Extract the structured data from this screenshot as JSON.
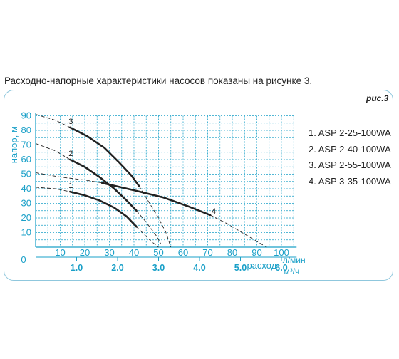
{
  "caption": "Расходно-напорные характеристики насосов показаны на рисунке 3.",
  "figure_label": "рис.3",
  "colors": {
    "axis_text": "#1aa0c8",
    "grid": "#1aa0c8",
    "frame": "#8fc7dd",
    "curve": "#222222"
  },
  "chart_data": {
    "type": "line",
    "ylabel": "напор, м",
    "xlabel_primary": "расход л/мин",
    "xlabel_secondary": "расход м³/ч",
    "xlabel_word": "расход",
    "xlabel_unit_lmin": "л/мин",
    "xlabel_unit_m3h": "м³/ч",
    "origin_label": "0",
    "y_ticks": [
      "10",
      "20",
      "30",
      "40",
      "50",
      "60",
      "70",
      "80",
      "90"
    ],
    "x_ticks_lmin": [
      "10",
      "20",
      "30",
      "40",
      "50",
      "60",
      "70",
      "80",
      "90",
      "100"
    ],
    "x_ticks_m3h": [
      "1.0",
      "2.0",
      "3.0",
      "4.0",
      "5.0",
      "6.0"
    ],
    "xlim": [
      0,
      105
    ],
    "ylim": [
      0,
      90
    ],
    "grid": true,
    "legend": [
      "1. ASP 2-25-100WA",
      "2. ASP 2-40-100WA",
      "3. ASP 2-55-100WA",
      "4. ASP 3-35-100WA"
    ],
    "series": [
      {
        "name": "1",
        "solid": [
          [
            14,
            38
          ],
          [
            20,
            35.5
          ],
          [
            26,
            32
          ],
          [
            32,
            27
          ],
          [
            37,
            21
          ],
          [
            41,
            14
          ]
        ],
        "dashed": [
          [
            0,
            41
          ],
          [
            8,
            40
          ],
          [
            14,
            38
          ]
        ],
        "dashed_tail": [
          [
            41,
            14
          ],
          [
            44,
            9
          ],
          [
            47,
            4
          ],
          [
            50,
            0
          ]
        ]
      },
      {
        "name": "2",
        "solid": [
          [
            14,
            60
          ],
          [
            20,
            55
          ],
          [
            26,
            48
          ],
          [
            32,
            40
          ],
          [
            37,
            32
          ],
          [
            41,
            25
          ]
        ],
        "dashed": [
          [
            0,
            71
          ],
          [
            8,
            66
          ],
          [
            14,
            60
          ]
        ],
        "dashed_tail": [
          [
            41,
            25
          ],
          [
            45,
            17
          ],
          [
            49,
            8
          ],
          [
            51,
            2
          ]
        ]
      },
      {
        "name": "3",
        "solid": [
          [
            14,
            82
          ],
          [
            21,
            76
          ],
          [
            28,
            68
          ],
          [
            34,
            58
          ],
          [
            39,
            49
          ],
          [
            42,
            42
          ]
        ],
        "dashed": [
          [
            0,
            91
          ],
          [
            8,
            87
          ],
          [
            14,
            82
          ]
        ],
        "dashed_tail": [
          [
            42,
            42
          ],
          [
            46,
            31
          ],
          [
            50,
            20
          ],
          [
            53,
            10
          ],
          [
            55,
            0
          ]
        ]
      },
      {
        "name": "4",
        "solid": [
          [
            27,
            44
          ],
          [
            40,
            39
          ],
          [
            52,
            34
          ],
          [
            62,
            28
          ],
          [
            71,
            22
          ]
        ],
        "dashed": [
          [
            0,
            51
          ],
          [
            10,
            48
          ],
          [
            20,
            46
          ],
          [
            27,
            44
          ]
        ],
        "dashed_tail": [
          [
            71,
            22
          ],
          [
            78,
            16
          ],
          [
            85,
            9
          ],
          [
            91,
            3
          ],
          [
            94,
            0
          ]
        ]
      }
    ]
  }
}
